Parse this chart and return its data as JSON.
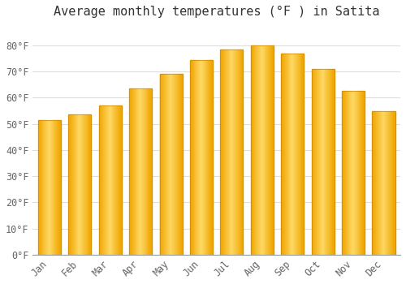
{
  "title": "Average monthly temperatures (°F ) in Satita",
  "months": [
    "Jan",
    "Feb",
    "Mar",
    "Apr",
    "May",
    "Jun",
    "Jul",
    "Aug",
    "Sep",
    "Oct",
    "Nov",
    "Dec"
  ],
  "values": [
    51.5,
    53.5,
    57,
    63.5,
    69,
    74.5,
    78.5,
    80,
    77,
    71,
    62.5,
    55
  ],
  "bar_color_center": "#FFD966",
  "bar_color_edge": "#F0A500",
  "background_color": "#FFFFFF",
  "grid_color": "#DDDDDD",
  "ylim": [
    0,
    88
  ],
  "yticks": [
    0,
    10,
    20,
    30,
    40,
    50,
    60,
    70,
    80
  ],
  "title_fontsize": 11,
  "tick_fontsize": 8.5,
  "bar_width": 0.75
}
